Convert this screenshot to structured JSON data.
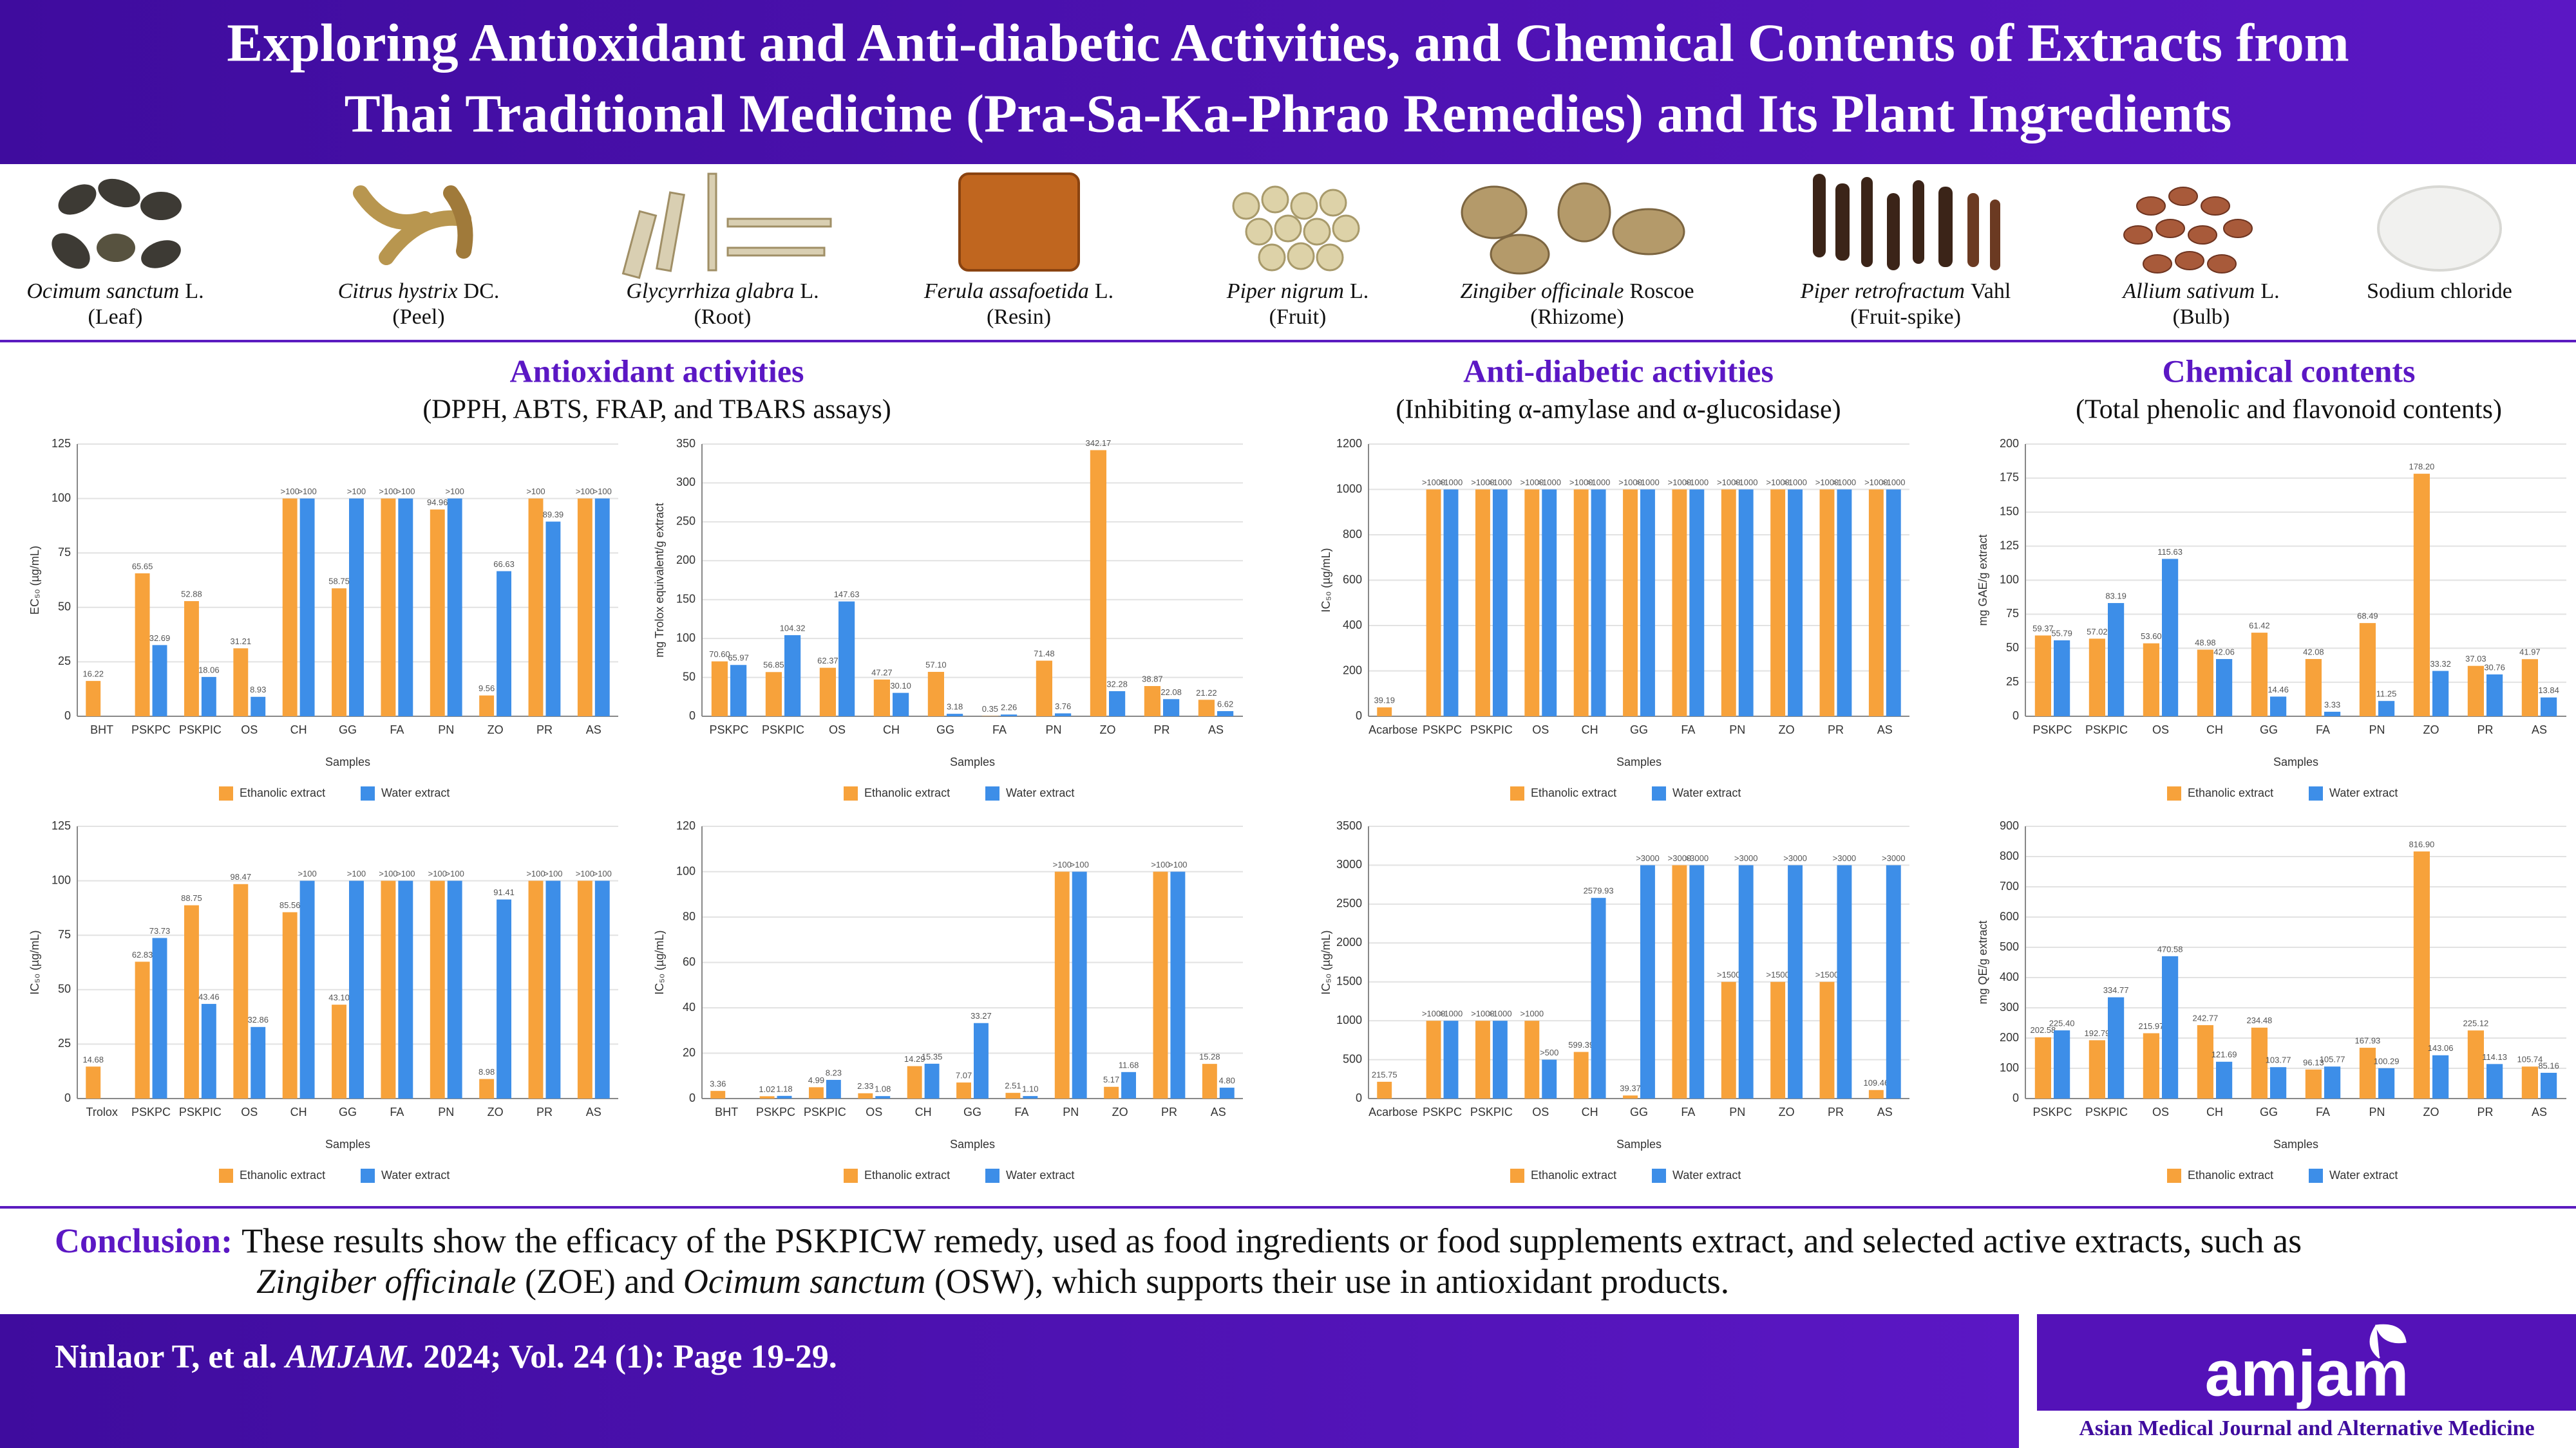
{
  "header": {
    "title": [
      "Exploring Antioxidant and Anti-diabetic Activities, and Chemical Contents of Extracts from",
      "Thai Traditional Medicine (Pra-Sa-Ka-Phrao Remedies) and Its Plant Ingredients"
    ]
  },
  "plants": [
    {
      "latin": "Ocimum sanctum",
      "author": "L.",
      "part": "(Leaf)"
    },
    {
      "latin": "Citrus hystrix",
      "author": "DC.",
      "part": "(Peel)"
    },
    {
      "latin": "Glycyrrhiza glabra",
      "author": "L.",
      "part": "(Root)"
    },
    {
      "latin": "Ferula assafoetida",
      "author": "L.",
      "part": "(Resin)"
    },
    {
      "latin": "Piper nigrum",
      "author": "L.",
      "part": "(Fruit)"
    },
    {
      "latin": "Zingiber officinale",
      "author": "Roscoe",
      "part": "(Rhizome)"
    },
    {
      "latin": "Piper retrofractum",
      "author": "Vahl",
      "part": "(Fruit-spike)"
    },
    {
      "latin": "Allium sativum",
      "author": "L.",
      "part": "(Bulb)"
    },
    {
      "name": "Sodium chloride"
    }
  ],
  "sections": [
    {
      "title": "Antioxidant activities",
      "subtitle": "(DPPH, ABTS, FRAP, and TBARS assays)"
    },
    {
      "title": "Anti-diabetic activities",
      "subtitle": "(Inhibiting α-amylase and α-glucosidase)"
    },
    {
      "title": "Chemical contents",
      "subtitle": "(Total phenolic and flavonoid contents)"
    }
  ],
  "chart_data": [
    {
      "type": "bar",
      "ylabel": "EC₅₀ (µg/mL)",
      "xlabel": "Samples",
      "grid": true,
      "legend": "bottom",
      "ylim": [
        0,
        125
      ],
      "yticks": [
        0,
        25,
        50,
        75,
        100,
        125
      ],
      "categories": [
        "BHT",
        "PSKPC",
        "PSKPIC",
        "OS",
        "CH",
        "GG",
        "FA",
        "PN",
        "ZO",
        "PR",
        "AS"
      ],
      "series": [
        {
          "name": "Ethanolic extract",
          "color": "#f7a23b",
          "values": [
            16.22,
            65.65,
            52.88,
            31.21,
            100,
            58.75,
            100,
            94.96,
            9.56,
            100,
            100
          ],
          "value_labels": [
            "16.22",
            "65.65",
            "52.88",
            "31.21",
            ">100",
            "58.75",
            ">100",
            "94.96",
            "9.56",
            ">100",
            ">100"
          ]
        },
        {
          "name": "Water extract",
          "color": "#3d8ee8",
          "values": [
            null,
            32.69,
            18.06,
            8.93,
            100,
            100,
            100,
            100,
            66.63,
            89.39,
            100
          ],
          "value_labels": [
            null,
            "32.69",
            "18.06",
            "8.93",
            ">100",
            ">100",
            ">100",
            ">100",
            "66.63",
            "89.39",
            ">100"
          ]
        }
      ]
    },
    {
      "type": "bar",
      "ylabel": "mg Trolox equivalent/g extract",
      "xlabel": "Samples",
      "grid": true,
      "legend": "bottom",
      "ylim": [
        0,
        350
      ],
      "yticks": [
        0,
        50,
        100,
        150,
        200,
        250,
        300,
        350
      ],
      "categories": [
        "PSKPC",
        "PSKPIC",
        "OS",
        "CH",
        "GG",
        "FA",
        "PN",
        "ZO",
        "PR",
        "AS"
      ],
      "series": [
        {
          "name": "Ethanolic extract",
          "color": "#f7a23b",
          "values": [
            70.6,
            56.85,
            62.37,
            47.27,
            57.1,
            0.35,
            71.48,
            342.17,
            38.87,
            21.22
          ],
          "value_labels": [
            "70.60",
            "56.85",
            "62.37",
            "47.27",
            "57.10",
            "0.35",
            "71.48",
            "342.17",
            "38.87",
            "21.22"
          ]
        },
        {
          "name": "Water extract",
          "color": "#3d8ee8",
          "values": [
            65.97,
            104.32,
            147.63,
            30.1,
            3.18,
            2.26,
            3.76,
            32.28,
            22.08,
            6.62
          ],
          "value_labels": [
            "65.97",
            "104.32",
            "147.63",
            "30.10",
            "3.18",
            "2.26",
            "3.76",
            "32.28",
            "22.08",
            "6.62"
          ]
        }
      ]
    },
    {
      "type": "bar",
      "ylabel": "IC₅₀ (µg/mL)",
      "xlabel": "Samples",
      "grid": true,
      "legend": "bottom",
      "ylim": [
        0,
        1200
      ],
      "yticks": [
        0,
        200,
        400,
        600,
        800,
        1000,
        1200
      ],
      "categories": [
        "Acarbose",
        "PSKPC",
        "PSKPIC",
        "OS",
        "CH",
        "GG",
        "FA",
        "PN",
        "ZO",
        "PR",
        "AS"
      ],
      "series": [
        {
          "name": "Ethanolic extract",
          "color": "#f7a23b",
          "values": [
            39.19,
            1000,
            1000,
            1000,
            1000,
            1000,
            1000,
            1000,
            1000,
            1000,
            1000
          ],
          "value_labels": [
            "39.19",
            ">1000",
            ">1000",
            ">1000",
            ">1000",
            ">1000",
            ">1000",
            ">1000",
            ">1000",
            ">1000",
            ">1000"
          ]
        },
        {
          "name": "Water extract",
          "color": "#3d8ee8",
          "values": [
            null,
            1000,
            1000,
            1000,
            1000,
            1000,
            1000,
            1000,
            1000,
            1000,
            1000
          ],
          "value_labels": [
            null,
            ">1000",
            ">1000",
            ">1000",
            ">1000",
            ">1000",
            ">1000",
            ">1000",
            ">1000",
            ">1000",
            ">1000"
          ]
        }
      ]
    },
    {
      "type": "bar",
      "ylabel": "mg GAE/g extract",
      "xlabel": "Samples",
      "grid": true,
      "legend": "bottom",
      "ylim": [
        0,
        200
      ],
      "yticks": [
        0,
        25,
        50,
        75,
        100,
        125,
        150,
        175,
        200
      ],
      "categories": [
        "PSKPC",
        "PSKPIC",
        "OS",
        "CH",
        "GG",
        "FA",
        "PN",
        "ZO",
        "PR",
        "AS"
      ],
      "series": [
        {
          "name": "Ethanolic extract",
          "color": "#f7a23b",
          "values": [
            59.37,
            57.02,
            53.6,
            48.98,
            61.42,
            42.08,
            68.49,
            178.2,
            37.03,
            41.97
          ],
          "value_labels": [
            "59.37",
            "57.02",
            "53.60",
            "48.98",
            "61.42",
            "42.08",
            "68.49",
            "178.20",
            "37.03",
            "41.97"
          ]
        },
        {
          "name": "Water extract",
          "color": "#3d8ee8",
          "values": [
            55.79,
            83.19,
            115.63,
            42.06,
            14.46,
            3.33,
            11.25,
            33.32,
            30.76,
            13.84
          ],
          "value_labels": [
            "55.79",
            "83.19",
            "115.63",
            "42.06",
            "14.46",
            "3.33",
            "11.25",
            "33.32",
            "30.76",
            "13.84"
          ]
        }
      ]
    },
    {
      "type": "bar",
      "ylabel": "IC₅₀ (µg/mL)",
      "xlabel": "Samples",
      "grid": true,
      "legend": "bottom",
      "ylim": [
        0,
        125
      ],
      "yticks": [
        0,
        25,
        50,
        75,
        100,
        125
      ],
      "categories": [
        "Trolox",
        "PSKPC",
        "PSKPIC",
        "OS",
        "CH",
        "GG",
        "FA",
        "PN",
        "ZO",
        "PR",
        "AS"
      ],
      "series": [
        {
          "name": "Ethanolic extract",
          "color": "#f7a23b",
          "values": [
            14.68,
            62.83,
            88.75,
            98.47,
            85.56,
            43.1,
            100,
            100,
            8.98,
            100,
            100
          ],
          "value_labels": [
            "14.68",
            "62.83",
            "88.75",
            "98.47",
            "85.56",
            "43.10",
            ">100",
            ">100",
            "8.98",
            ">100",
            ">100"
          ]
        },
        {
          "name": "Water extract",
          "color": "#3d8ee8",
          "values": [
            null,
            73.73,
            43.46,
            32.86,
            100,
            100,
            100,
            100,
            91.41,
            100,
            100
          ],
          "value_labels": [
            null,
            "73.73",
            "43.46",
            "32.86",
            ">100",
            ">100",
            ">100",
            ">100",
            "91.41",
            ">100",
            ">100"
          ]
        }
      ]
    },
    {
      "type": "bar",
      "ylabel": "IC₅₀ (µg/mL)",
      "xlabel": "Samples",
      "grid": true,
      "legend": "bottom",
      "ylim": [
        0,
        120
      ],
      "yticks": [
        0,
        20,
        40,
        60,
        80,
        100,
        120
      ],
      "categories": [
        "BHT",
        "PSKPC",
        "PSKPIC",
        "OS",
        "CH",
        "GG",
        "FA",
        "PN",
        "ZO",
        "PR",
        "AS"
      ],
      "series": [
        {
          "name": "Ethanolic extract",
          "color": "#f7a23b",
          "values": [
            3.36,
            1.02,
            4.99,
            2.33,
            14.29,
            7.07,
            2.51,
            100,
            5.17,
            100,
            15.28
          ],
          "value_labels": [
            "3.36",
            "1.02",
            "4.99",
            "2.33",
            "14.29",
            "7.07",
            "2.51",
            ">100",
            "5.17",
            ">100",
            "15.28"
          ]
        },
        {
          "name": "Water extract",
          "color": "#3d8ee8",
          "values": [
            null,
            1.18,
            8.23,
            1.08,
            15.35,
            33.27,
            1.1,
            100,
            11.68,
            100,
            4.8
          ],
          "value_labels": [
            null,
            "1.18",
            "8.23",
            "1.08",
            "15.35",
            "33.27",
            "1.10",
            ">100",
            "11.68",
            ">100",
            "4.80"
          ]
        }
      ]
    },
    {
      "type": "bar",
      "ylabel": "IC₅₀ (µg/mL)",
      "xlabel": "Samples",
      "grid": true,
      "legend": "bottom",
      "ylim": [
        0,
        3500
      ],
      "yticks": [
        0,
        500,
        1000,
        1500,
        2000,
        2500,
        3000,
        3500
      ],
      "categories": [
        "Acarbose",
        "PSKPC",
        "PSKPIC",
        "OS",
        "CH",
        "GG",
        "FA",
        "PN",
        "ZO",
        "PR",
        "AS"
      ],
      "series": [
        {
          "name": "Ethanolic extract",
          "color": "#f7a23b",
          "values": [
            215.75,
            1000,
            1000,
            1000,
            599.39,
            39.37,
            3000,
            1500,
            1500,
            1500,
            109.46
          ],
          "value_labels": [
            "215.75",
            ">1000",
            ">1000",
            ">1000",
            "599.39",
            "39.37",
            ">3000",
            ">1500",
            ">1500",
            ">1500",
            "109.46"
          ]
        },
        {
          "name": "Water extract",
          "color": "#3d8ee8",
          "values": [
            null,
            1000,
            1000,
            500,
            2579.93,
            3000,
            3000,
            3000,
            3000,
            3000,
            3000
          ],
          "value_labels": [
            null,
            ">1000",
            ">1000",
            ">500",
            "2579.93",
            ">3000",
            ">3000",
            ">3000",
            ">3000",
            ">3000",
            ">3000"
          ]
        }
      ]
    },
    {
      "type": "bar",
      "ylabel": "mg QE/g extract",
      "xlabel": "Samples",
      "grid": true,
      "legend": "bottom",
      "ylim": [
        0,
        900
      ],
      "yticks": [
        0,
        100,
        200,
        300,
        400,
        500,
        600,
        700,
        800,
        900
      ],
      "categories": [
        "PSKPC",
        "PSKPIC",
        "OS",
        "CH",
        "GG",
        "FA",
        "PN",
        "ZO",
        "PR",
        "AS"
      ],
      "series": [
        {
          "name": "Ethanolic extract",
          "color": "#f7a23b",
          "values": [
            202.58,
            192.79,
            215.97,
            242.77,
            234.48,
            96.13,
            167.93,
            816.9,
            225.12,
            105.74
          ],
          "value_labels": [
            "202.58",
            "192.79",
            "215.97",
            "242.77",
            "234.48",
            "96.13",
            "167.93",
            "816.90",
            "225.12",
            "105.74"
          ]
        },
        {
          "name": "Water extract",
          "color": "#3d8ee8",
          "values": [
            225.4,
            334.77,
            470.58,
            121.69,
            103.77,
            105.77,
            100.29,
            143.06,
            114.13,
            85.16
          ],
          "value_labels": [
            "225.40",
            "334.77",
            "470.58",
            "121.69",
            "103.77",
            "105.77",
            "100.29",
            "143.06",
            "114.13",
            "85.16"
          ]
        }
      ]
    }
  ],
  "conclusion": {
    "label": "Conclusion:",
    "line1": "These results show the efficacy of the PSKPICW remedy, used as food ingredients or food supplements extract, and selected active extracts, such as",
    "line2": [
      "Zingiber officinale",
      " (ZOE) and ",
      "Ocimum sanctum",
      " (OSW), which supports their use in antioxidant products."
    ]
  },
  "footer": {
    "citation": [
      "Ninlaor T, et al. ",
      "AMJAM.",
      " 2024; Vol. 24 (1): Page 19-29."
    ],
    "logo": "amjam",
    "journal": "Asian Medical Journal and Alternative Medicine"
  }
}
